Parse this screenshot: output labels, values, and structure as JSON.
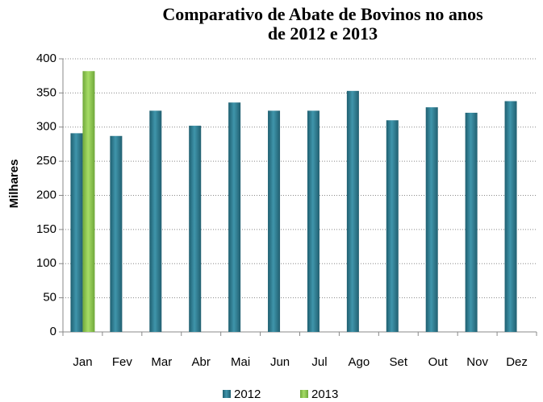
{
  "chart_data": {
    "type": "bar",
    "title": "Comparativo de Abate de Bovinos no anos de 2012 e 2013",
    "y_label": "Milhares",
    "categories": [
      "Jan",
      "Fev",
      "Mar",
      "Abr",
      "Mai",
      "Jun",
      "Jul",
      "Ago",
      "Set",
      "Out",
      "Nov",
      "Dez"
    ],
    "series": [
      {
        "name": "2012",
        "color": "#31849b",
        "values": [
          291,
          287,
          324,
          302,
          336,
          324,
          324,
          353,
          310,
          329,
          321,
          338
        ]
      },
      {
        "name": "2013",
        "color": "#92d050",
        "values": [
          382,
          null,
          null,
          null,
          null,
          null,
          null,
          null,
          null,
          null,
          null,
          null
        ]
      }
    ],
    "ylim": [
      0,
      400
    ],
    "yticks": [
      0,
      50,
      100,
      150,
      200,
      250,
      300,
      350,
      400
    ],
    "grid": true
  }
}
